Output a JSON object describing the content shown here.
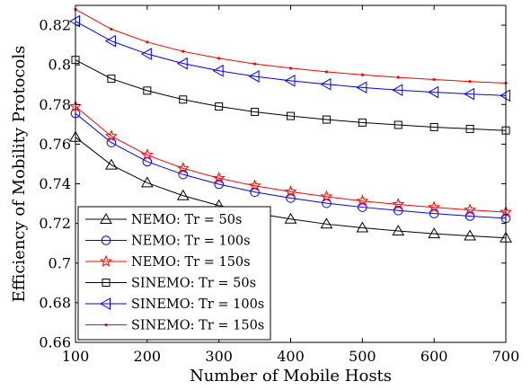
{
  "chart_data": {
    "type": "line",
    "xlabel": "Number of Mobile Hosts",
    "ylabel": "Efficiency of Mobility Protocols",
    "xlim": [
      100,
      700
    ],
    "ylim": [
      0.66,
      0.83
    ],
    "xticks": [
      100,
      200,
      300,
      400,
      500,
      600,
      700
    ],
    "yticks": [
      0.66,
      0.68,
      0.7,
      0.72,
      0.74,
      0.76,
      0.78,
      0.8,
      0.82
    ],
    "xtick_labels": [
      "100",
      "200",
      "300",
      "400",
      "500",
      "600",
      "700"
    ],
    "ytick_labels": [
      "0.66",
      "0.68",
      "0.7",
      "0.72",
      "0.74",
      "0.76",
      "0.78",
      "0.8",
      "0.82"
    ],
    "grid": false,
    "legend_position": "bottom-left",
    "x": [
      100,
      150,
      200,
      250,
      300,
      350,
      400,
      450,
      500,
      550,
      600,
      650,
      700
    ],
    "series": [
      {
        "name": "NEMO: Tr = 50s",
        "color": "#000000",
        "marker": "triangle-up",
        "values": [
          0.7635,
          0.7495,
          0.7405,
          0.734,
          0.729,
          0.7252,
          0.7222,
          0.7197,
          0.7178,
          0.7162,
          0.7148,
          0.7137,
          0.7127
        ]
      },
      {
        "name": "NEMO: Tr = 100s",
        "color": "#0000ff",
        "marker": "circle",
        "values": [
          0.7755,
          0.7608,
          0.7512,
          0.7447,
          0.7398,
          0.7358,
          0.7328,
          0.7302,
          0.7282,
          0.7265,
          0.725,
          0.7237,
          0.7226
        ]
      },
      {
        "name": "NEMO: Tr = 150s",
        "color": "#ff0000",
        "marker": "star",
        "values": [
          0.779,
          0.764,
          0.7545,
          0.7478,
          0.7428,
          0.739,
          0.736,
          0.7335,
          0.7313,
          0.7296,
          0.7281,
          0.7268,
          0.7257
        ]
      },
      {
        "name": "SINEMO: Tr = 50s",
        "color": "#000000",
        "marker": "square",
        "values": [
          0.8025,
          0.793,
          0.787,
          0.7825,
          0.779,
          0.7763,
          0.7742,
          0.7724,
          0.7709,
          0.7697,
          0.7686,
          0.7677,
          0.7669
        ]
      },
      {
        "name": "SINEMO: Tr = 100s",
        "color": "#0000ff",
        "marker": "triangle-left",
        "values": [
          0.822,
          0.812,
          0.8055,
          0.8007,
          0.797,
          0.7942,
          0.792,
          0.7902,
          0.7886,
          0.7873,
          0.7862,
          0.7853,
          0.7845
        ]
      },
      {
        "name": "SINEMO: Tr = 150s",
        "color": "#ff0000",
        "marker": "dot",
        "values": [
          0.828,
          0.818,
          0.8115,
          0.8068,
          0.8033,
          0.8005,
          0.7983,
          0.7965,
          0.795,
          0.7937,
          0.7926,
          0.7916,
          0.7908
        ]
      }
    ]
  }
}
